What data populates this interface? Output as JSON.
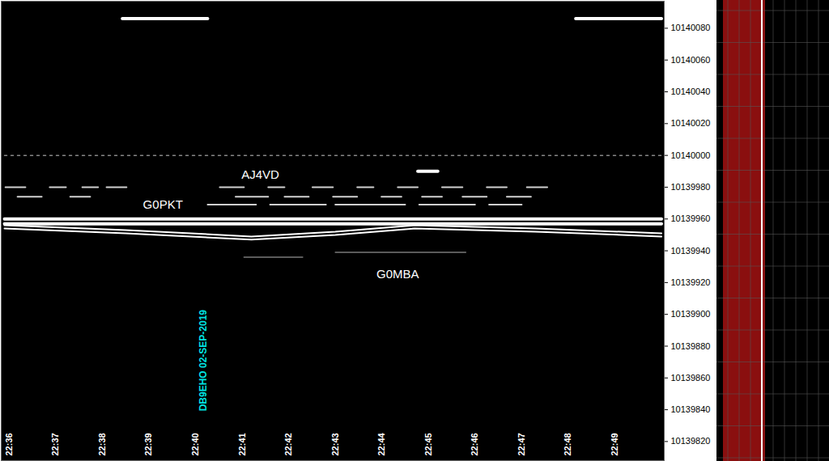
{
  "chart_data": {
    "type": "waterfall",
    "xlim": [
      35.83,
      50.06
    ],
    "xticks": [
      {
        "value": 36,
        "label": "22:36"
      },
      {
        "value": 37,
        "label": "22:37"
      },
      {
        "value": 38,
        "label": "22:38"
      },
      {
        "value": 39,
        "label": "22:39"
      },
      {
        "value": 40,
        "label": "22:40"
      },
      {
        "value": 41,
        "label": "22:41"
      },
      {
        "value": 42,
        "label": "22:42"
      },
      {
        "value": 43,
        "label": "22:43"
      },
      {
        "value": 44,
        "label": "22:44"
      },
      {
        "value": 45,
        "label": "22:45"
      },
      {
        "value": 46,
        "label": "22:46"
      },
      {
        "value": 47,
        "label": "22:47"
      },
      {
        "value": 48,
        "label": "22:48"
      },
      {
        "value": 49,
        "label": "22:49"
      }
    ],
    "ylim": [
      10139808,
      10140097
    ],
    "yticks": [
      10139820,
      10139840,
      10139860,
      10139880,
      10139900,
      10139920,
      10139940,
      10139960,
      10139980,
      10140000,
      10140020,
      10140040,
      10140060,
      10140080
    ],
    "grid": false,
    "series": [
      {
        "color": "#ffffff",
        "line_style": "thick",
        "x": [
          35.9,
          50.0
        ],
        "values": [
          10139960,
          10139960
        ]
      },
      {
        "color": "#ffffff",
        "line_style": "thick",
        "x": [
          35.9,
          50.0
        ],
        "values": [
          10139957,
          10139957
        ]
      },
      {
        "color": "#ffffff",
        "line_style": "solid",
        "x": [
          35.9,
          38.5,
          41.2,
          43.0,
          44.7,
          47.3,
          50.0
        ],
        "values": [
          10139956,
          10139953,
          10139949,
          10139952,
          10139956,
          10139954,
          10139951
        ]
      },
      {
        "color": "#ffffff",
        "line_style": "solid",
        "x": [
          35.9,
          38.5,
          41.2,
          43.0,
          44.7,
          47.3,
          50.0
        ],
        "values": [
          10139954,
          10139951,
          10139947,
          10139950,
          10139954,
          10139952,
          10139949
        ]
      },
      {
        "color": "#d0d0d0",
        "line_style": "solid",
        "x": [
          35.92,
          36.35,
          null,
          36.87,
          37.22,
          null,
          37.57,
          37.91,
          null,
          38.09,
          38.52,
          null,
          40.52,
          41.04,
          null,
          41.56,
          41.91,
          null,
          42.51,
          42.95,
          null,
          43.47,
          43.82,
          null,
          44.34,
          44.77,
          null,
          45.29,
          45.73,
          null,
          46.25,
          46.68,
          null,
          47.11,
          47.55
        ],
        "values": [
          10139980,
          10139980,
          null,
          10139980,
          10139980,
          null,
          10139980,
          10139980,
          null,
          10139980,
          10139980,
          null,
          10139980,
          10139980,
          null,
          10139980,
          10139980,
          null,
          10139980,
          10139980,
          null,
          10139980,
          10139980,
          null,
          10139980,
          10139980,
          null,
          10139980,
          10139980,
          null,
          10139980,
          10139980,
          null,
          10139980,
          10139980
        ]
      },
      {
        "color": "#d0d0d0",
        "line_style": "solid",
        "x": [
          36.18,
          36.7,
          null,
          37.31,
          37.74,
          null,
          40.86,
          41.56,
          null,
          41.91,
          42.43,
          null,
          42.95,
          43.47,
          null,
          43.99,
          44.42,
          null,
          44.86,
          45.29,
          null,
          45.73,
          46.25,
          null,
          46.68,
          47.2
        ],
        "values": [
          10139974,
          10139974,
          null,
          10139974,
          10139974,
          null,
          10139974,
          10139974,
          null,
          10139974,
          10139974,
          null,
          10139974,
          10139974,
          null,
          10139974,
          10139974,
          null,
          10139974,
          10139974,
          null,
          10139974,
          10139974,
          null,
          10139974,
          10139974
        ]
      },
      {
        "color": "#d0d0d0",
        "line_style": "solid",
        "x": [
          40.26,
          41.3,
          null,
          41.6,
          42.8,
          null,
          43.0,
          44.5,
          null,
          44.8,
          46.0,
          null,
          46.3,
          47.0
        ],
        "values": [
          10139969,
          10139969,
          null,
          10139969,
          10139969,
          null,
          10139969,
          10139969,
          null,
          10139969,
          10139969,
          null,
          10139969,
          10139969
        ]
      },
      {
        "color": "#ffffff",
        "line_style": "thick",
        "x": [
          38.43,
          40.26,
          null,
          48.16,
          50.0
        ],
        "values": [
          10140086,
          10140086,
          null,
          10140086,
          10140086
        ]
      },
      {
        "color": "#888888",
        "line_style": "dotted",
        "x": [
          35.9,
          50.0
        ],
        "values": [
          10140000,
          10140000
        ]
      },
      {
        "color": "#999999",
        "line_style": "faint",
        "x": [
          41.04,
          42.3,
          null,
          43.0,
          45.8
        ],
        "values": [
          10139936,
          10139936,
          null,
          10139939,
          10139939
        ]
      },
      {
        "color": "#ffffff",
        "line_style": "thick",
        "x": [
          44.77,
          45.2
        ],
        "values": [
          10139990,
          10139990
        ]
      }
    ],
    "annotations": [
      {
        "text": "AJ4VD",
        "x": 41.39,
        "y": 10139988,
        "color": "#ffffff"
      },
      {
        "text": "G0PKT",
        "x": 39.3,
        "y": 10139969,
        "color": "#ffffff"
      },
      {
        "text": "G0MBA",
        "x": 44.34,
        "y": 10139925,
        "color": "#ffffff"
      }
    ],
    "stamp": {
      "text": "DB9EHO 02-SEP-2019",
      "x": 40.17,
      "y": 10139871,
      "color": "#00e5e5"
    }
  }
}
